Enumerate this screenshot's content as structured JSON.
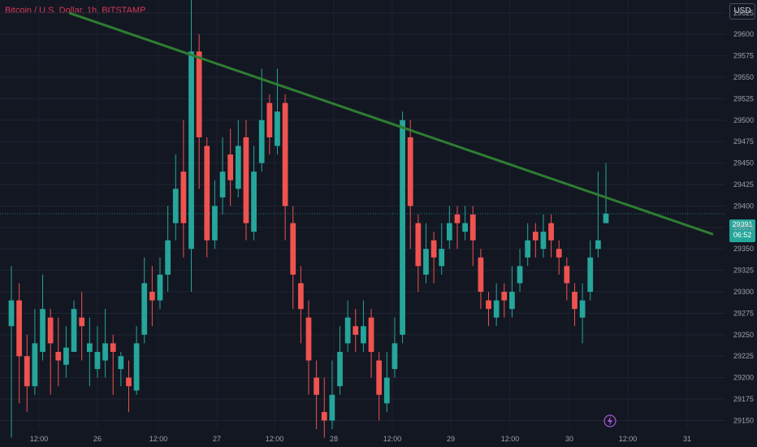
{
  "chart_data": {
    "type": "candlestick",
    "title": "Bitcoin / U.S. Dollar, 1h, BITSTAMP",
    "currency_button": "USD",
    "current_price": "29391",
    "countdown": "06:52",
    "ylim": [
      29140,
      29640
    ],
    "y_ticks": [
      29150,
      29175,
      29200,
      29225,
      29250,
      29275,
      29300,
      29325,
      29350,
      29375,
      29400,
      29425,
      29450,
      29475,
      29500,
      29525,
      29550,
      29575,
      29600,
      29625
    ],
    "x_labels": [
      "12:00",
      "26",
      "12:00",
      "27",
      "12:00",
      "28",
      "12:00",
      "29",
      "12:00",
      "30",
      "12:00",
      "31"
    ],
    "up_color": "#26a69a",
    "down_color": "#ef5350",
    "trendline_color": "#2e7d32",
    "candles": [
      [
        29260,
        29290,
        29140,
        29130,
        29330
      ],
      [
        29290,
        29225,
        29200,
        29170,
        29310
      ],
      [
        29225,
        29190,
        29230,
        29160,
        29250
      ],
      [
        29190,
        29240,
        29220,
        29180,
        29280
      ],
      [
        29230,
        29280,
        29240,
        29220,
        29320
      ],
      [
        29270,
        29240,
        29220,
        29180,
        29280
      ],
      [
        29230,
        29220,
        29210,
        29190,
        29270
      ],
      [
        29215,
        29235,
        29220,
        29200,
        29260
      ],
      [
        29230,
        29280,
        29270,
        29230,
        29290
      ],
      [
        29270,
        29260,
        29230,
        29220,
        29300
      ],
      [
        29230,
        29240,
        29210,
        29190,
        29270
      ],
      [
        29210,
        29230,
        29220,
        29200,
        29260
      ],
      [
        29220,
        29240,
        29250,
        29200,
        29280
      ],
      [
        29240,
        29230,
        29200,
        29180,
        29250
      ],
      [
        29210,
        29225,
        29200,
        29190,
        29230
      ],
      [
        29200,
        29190,
        29180,
        29160,
        29220
      ],
      [
        29185,
        29240,
        29250,
        29180,
        29260
      ],
      [
        29250,
        29310,
        29300,
        29240,
        29340
      ],
      [
        29300,
        29290,
        29280,
        29260,
        29330
      ],
      [
        29290,
        29320,
        29330,
        29280,
        29340
      ],
      [
        29320,
        29360,
        29390,
        29300,
        29400
      ],
      [
        29380,
        29420,
        29440,
        29360,
        29460
      ],
      [
        29440,
        29380,
        29350,
        29340,
        29500
      ],
      [
        29350,
        29580,
        29590,
        29300,
        29640
      ],
      [
        29580,
        29480,
        29470,
        29420,
        29600
      ],
      [
        29470,
        29360,
        29350,
        29340,
        29480
      ],
      [
        29360,
        29400,
        29410,
        29350,
        29430
      ],
      [
        29410,
        29440,
        29460,
        29390,
        29480
      ],
      [
        29460,
        29430,
        29420,
        29400,
        29490
      ],
      [
        29420,
        29470,
        29480,
        29410,
        29500
      ],
      [
        29480,
        29380,
        29370,
        29360,
        29500
      ],
      [
        29370,
        29440,
        29450,
        29360,
        29470
      ],
      [
        29450,
        29500,
        29520,
        29440,
        29560
      ],
      [
        29520,
        29480,
        29470,
        29460,
        29530
      ],
      [
        29470,
        29510,
        29520,
        29460,
        29560
      ],
      [
        29520,
        29400,
        29380,
        29360,
        29530
      ],
      [
        29380,
        29320,
        29310,
        29280,
        29400
      ],
      [
        29310,
        29280,
        29270,
        29240,
        29330
      ],
      [
        29270,
        29220,
        29200,
        29180,
        29290
      ],
      [
        29200,
        29180,
        29160,
        29140,
        29220
      ],
      [
        29160,
        29150,
        29140,
        29130,
        29200
      ],
      [
        29150,
        29180,
        29190,
        29140,
        29220
      ],
      [
        29190,
        29230,
        29240,
        29180,
        29260
      ],
      [
        29240,
        29270,
        29260,
        29230,
        29290
      ],
      [
        29260,
        29250,
        29240,
        29230,
        29280
      ],
      [
        29240,
        29260,
        29270,
        29230,
        29290
      ],
      [
        29270,
        29230,
        29220,
        29200,
        29280
      ],
      [
        29220,
        29180,
        29170,
        29150,
        29230
      ],
      [
        29170,
        29200,
        29210,
        29160,
        29230
      ],
      [
        29210,
        29240,
        29250,
        29200,
        29270
      ],
      [
        29250,
        29500,
        29480,
        29240,
        29510
      ],
      [
        29480,
        29400,
        29380,
        29350,
        29500
      ],
      [
        29380,
        29330,
        29320,
        29300,
        29390
      ],
      [
        29320,
        29350,
        29360,
        29310,
        29380
      ],
      [
        29360,
        29340,
        29330,
        29310,
        29370
      ],
      [
        29330,
        29350,
        29360,
        29320,
        29380
      ],
      [
        29360,
        29380,
        29390,
        29350,
        29400
      ],
      [
        29390,
        29380,
        29370,
        29350,
        29400
      ],
      [
        29370,
        29380,
        29390,
        29360,
        29400
      ],
      [
        29390,
        29360,
        29340,
        29330,
        29400
      ],
      [
        29340,
        29300,
        29290,
        29280,
        29350
      ],
      [
        29290,
        29280,
        29270,
        29260,
        29300
      ],
      [
        29270,
        29290,
        29300,
        29260,
        29310
      ],
      [
        29300,
        29290,
        29280,
        29270,
        29310
      ],
      [
        29280,
        29300,
        29310,
        29270,
        29330
      ],
      [
        29310,
        29330,
        29340,
        29300,
        29350
      ],
      [
        29340,
        29360,
        29370,
        29330,
        29380
      ],
      [
        29370,
        29360,
        29350,
        29340,
        29380
      ],
      [
        29350,
        29370,
        29380,
        29340,
        29390
      ],
      [
        29380,
        29360,
        29350,
        29340,
        29390
      ],
      [
        29350,
        29340,
        29330,
        29320,
        29360
      ],
      [
        29330,
        29310,
        29300,
        29290,
        29340
      ],
      [
        29300,
        29280,
        29270,
        29260,
        29310
      ],
      [
        29270,
        29290,
        29300,
        29240,
        29310
      ],
      [
        29300,
        29340,
        29350,
        29290,
        29360
      ],
      [
        29350,
        29360,
        29380,
        29340,
        29440
      ],
      [
        29380,
        29391,
        29391,
        29380,
        29450
      ]
    ]
  }
}
